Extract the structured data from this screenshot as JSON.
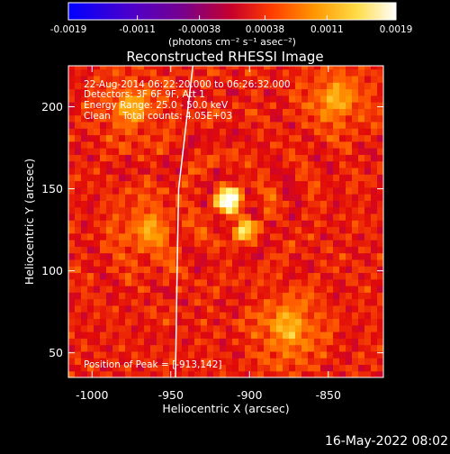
{
  "chart_data": {
    "type": "heatmap",
    "title": "Reconstructed RHESSI Image",
    "xlabel": "Heliocentric X (arcsec)",
    "ylabel": "Heliocentric Y (arcsec)",
    "xlim": [
      -1015,
      -815
    ],
    "ylim": [
      35,
      225
    ],
    "xticks": [
      -1000,
      -950,
      -900,
      -850
    ],
    "xtick_labels": [
      "-1000",
      "-950",
      "-900",
      "-850"
    ],
    "yticks": [
      50,
      100,
      150,
      200
    ],
    "ytick_labels": [
      "50",
      "100",
      "150",
      "200"
    ],
    "colorbar": {
      "range": [
        -0.0019,
        0.0019
      ],
      "ticks": [
        -0.0019,
        -0.0011,
        -0.00038,
        0.00038,
        0.0011,
        0.0019
      ],
      "tick_labels": [
        "-0.0019",
        "-0.0011",
        "-0.00038",
        "0.00038",
        "0.0011",
        "0.0019"
      ],
      "units_label": "(photons cm⁻² s⁻¹ asec⁻²)",
      "colormap": [
        "#0000ff",
        "#5000c8",
        "#78008c",
        "#b4005a",
        "#e10a0a",
        "#ff5a00",
        "#ff9b00",
        "#ffd23c",
        "#ffff96",
        "#ffffff"
      ]
    },
    "annotations": [
      "22-Aug-2014 06:22:20.000 to 06:26:32.000",
      "Detectors: 3F 6F 9F, Att 1",
      "Energy Range: 25.0 - 50.0 keV",
      "Clean    Total counts: 4.05E+03",
      "Position of Peak = [-913,142]"
    ],
    "peak": {
      "x": -913,
      "y": 142
    },
    "sources": [
      {
        "x": -913,
        "y": 143,
        "amp": 1.0,
        "sigma": 6
      },
      {
        "x": -903,
        "y": 126,
        "amp": 0.62,
        "sigma": 5
      },
      {
        "x": -875,
        "y": 65,
        "amp": 0.45,
        "sigma": 12
      },
      {
        "x": -845,
        "y": 205,
        "amp": 0.42,
        "sigma": 11
      },
      {
        "x": -975,
        "y": 200,
        "amp": 0.38,
        "sigma": 11
      },
      {
        "x": -965,
        "y": 125,
        "amp": 0.32,
        "sigma": 12
      }
    ],
    "limb": [
      [
        -936,
        225
      ],
      [
        -945,
        150
      ],
      [
        -946,
        100
      ],
      [
        -947,
        35
      ]
    ]
  },
  "timestamp": "16-May-2022 08:02"
}
